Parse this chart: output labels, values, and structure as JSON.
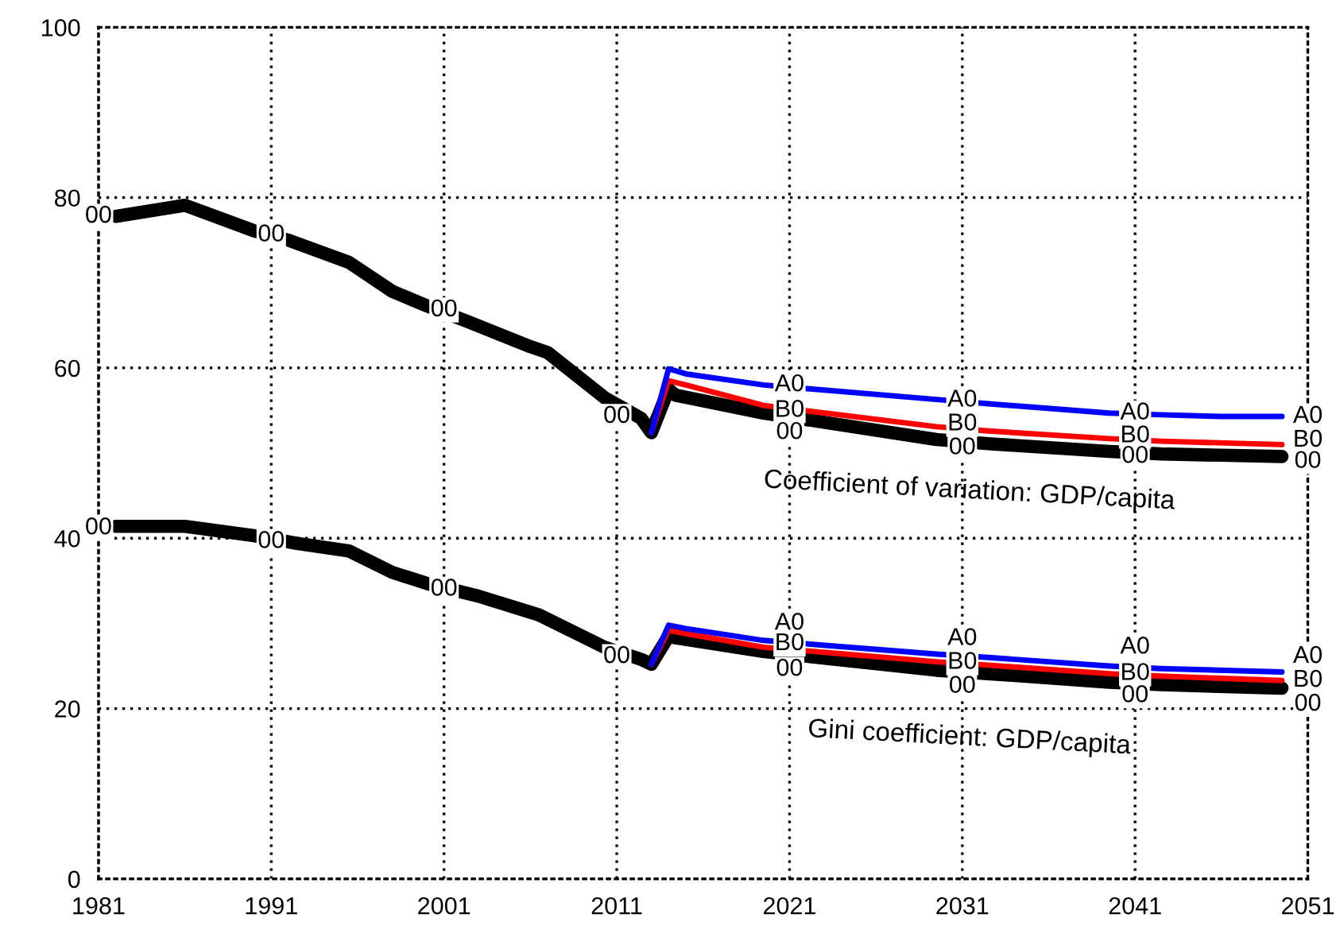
{
  "chart_data": {
    "type": "line",
    "xlim": [
      1981,
      2051
    ],
    "xticks": [
      1981,
      1991,
      2001,
      2011,
      2021,
      2031,
      2041,
      2051
    ],
    "ylim": [
      0,
      100
    ],
    "yticks": [
      0,
      20,
      40,
      60,
      80,
      100
    ],
    "grid": true,
    "line_style": "solid",
    "series": [
      {
        "color": "#000000",
        "x": [
          1982,
          1986,
          1990,
          1992,
          1995.5,
          1998,
          2000,
          2002.3,
          2006,
          2007,
          2010.3,
          2012.4,
          2013,
          2014,
          2014.4,
          2019.5,
          2029.5,
          2032.5,
          2039.5,
          2042.5,
          2049.5
        ],
        "values": [
          77.8,
          79.1,
          76.1,
          75,
          72.4,
          69,
          67.3,
          65.5,
          62.5,
          61.8,
          56.5,
          54.1,
          52.4,
          57.5,
          56.8,
          54.7,
          51.6,
          51.1,
          50.2,
          49.9,
          49.6
        ]
      },
      {
        "color": "#ff0000",
        "x": [
          2013,
          2014,
          2015,
          2019.5,
          2029.5,
          2032.5,
          2039.5,
          2042.5,
          2049.5
        ],
        "values": [
          52.4,
          58.5,
          58,
          55.6,
          53.1,
          52.6,
          51.7,
          51.4,
          51
        ]
      },
      {
        "color": "#0000ff",
        "x": [
          2013,
          2014,
          2015,
          2019.5,
          2029.5,
          2032.5,
          2039.5,
          2042.5,
          2046,
          2049.5
        ],
        "values": [
          52.4,
          59.9,
          59.3,
          58,
          56.3,
          55.8,
          54.7,
          54.5,
          54.3,
          54.3
        ]
      },
      {
        "color": "#000000",
        "x": [
          1982,
          1986,
          1990,
          1992.5,
          1995.5,
          1998,
          2000,
          2003,
          2006.5,
          2010.3,
          2012.5,
          2013,
          2014,
          2014.4,
          2019.5,
          2029.5,
          2032.5,
          2039.5,
          2042.5,
          2049.5
        ],
        "values": [
          41.4,
          41.4,
          40.3,
          39.4,
          38.5,
          36,
          34.7,
          33.2,
          31,
          27.2,
          25.7,
          25.2,
          28.5,
          28.3,
          26.7,
          24.5,
          24.1,
          23.1,
          22.8,
          22.4
        ]
      },
      {
        "color": "#ff0000",
        "x": [
          2013,
          2014,
          2015,
          2019.5,
          2029.5,
          2032.5,
          2039.5,
          2042.5,
          2049.5
        ],
        "values": [
          25.2,
          29.2,
          28.8,
          27.2,
          25.5,
          25.1,
          24.1,
          23.8,
          23.3
        ]
      },
      {
        "color": "#0000ff",
        "x": [
          2013,
          2014,
          2015,
          2019.5,
          2029.5,
          2032.5,
          2039.5,
          2042.5,
          2049.5
        ],
        "values": [
          25.2,
          29.8,
          29.4,
          28,
          26.4,
          26,
          25,
          24.7,
          24.3
        ]
      }
    ],
    "annotations": [
      {
        "text": "00",
        "x": 1981,
        "y": 77.8
      },
      {
        "text": "00",
        "x": 1991,
        "y": 75.6
      },
      {
        "text": "00",
        "x": 2001,
        "y": 66.8
      },
      {
        "text": "00",
        "x": 2011,
        "y": 54.3
      },
      {
        "text": "A0",
        "x": 2021,
        "y": 58
      },
      {
        "text": "B0",
        "x": 2021,
        "y": 55
      },
      {
        "text": "00",
        "x": 2021,
        "y": 52.4
      },
      {
        "text": "A0",
        "x": 2031,
        "y": 56.2
      },
      {
        "text": "B0",
        "x": 2031,
        "y": 53.4
      },
      {
        "text": "00",
        "x": 2031,
        "y": 50.6
      },
      {
        "text": "A0",
        "x": 2041,
        "y": 54.7
      },
      {
        "text": "B0",
        "x": 2041,
        "y": 52
      },
      {
        "text": "00",
        "x": 2041,
        "y": 49.6
      },
      {
        "text": "A0",
        "x": 2051,
        "y": 54.3
      },
      {
        "text": "B0",
        "x": 2051,
        "y": 51.5
      },
      {
        "text": "00",
        "x": 2051,
        "y": 49
      },
      {
        "text": "00",
        "x": 1981,
        "y": 41.2
      },
      {
        "text": "00",
        "x": 1991,
        "y": 39.6
      },
      {
        "text": "00",
        "x": 2001,
        "y": 34
      },
      {
        "text": "00",
        "x": 2011,
        "y": 26.1
      },
      {
        "text": "A0",
        "x": 2021,
        "y": 30
      },
      {
        "text": "B0",
        "x": 2021,
        "y": 27.6
      },
      {
        "text": "00",
        "x": 2021,
        "y": 24.6
      },
      {
        "text": "A0",
        "x": 2031,
        "y": 28.2
      },
      {
        "text": "B0",
        "x": 2031,
        "y": 25.4
      },
      {
        "text": "00",
        "x": 2031,
        "y": 22.6
      },
      {
        "text": "A0",
        "x": 2041,
        "y": 27.2
      },
      {
        "text": "B0",
        "x": 2041,
        "y": 24.1
      },
      {
        "text": "00",
        "x": 2041,
        "y": 21.5
      },
      {
        "text": "A0",
        "x": 2051,
        "y": 26.1
      },
      {
        "text": "B0",
        "x": 2051,
        "y": 23.3
      },
      {
        "text": "00",
        "x": 2051,
        "y": 20.5
      },
      "Coefficient of variation: GDP/capita",
      "Gini coefficient: GDP/capita"
    ]
  }
}
